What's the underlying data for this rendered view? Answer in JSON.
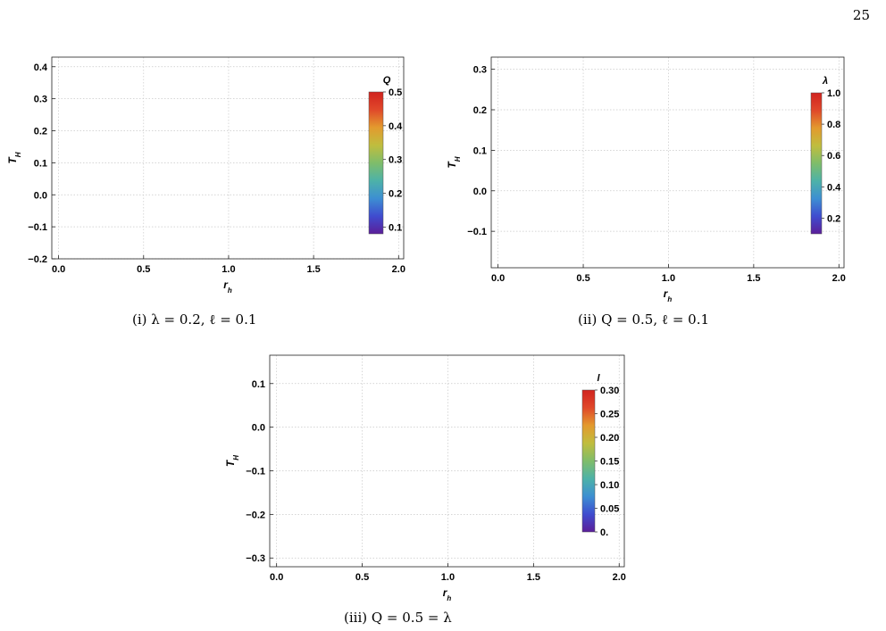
{
  "page_number": "25",
  "colorbar_colors": [
    "#5b1e99",
    "#3f4ccf",
    "#3d8fd2",
    "#4db2a8",
    "#7fbd6a",
    "#c0bd3e",
    "#e39a2e",
    "#e0482a",
    "#d1231f"
  ],
  "chart_data": [
    {
      "type": "line",
      "caption": "(i) λ = 0.2, ℓ = 0.1",
      "xlabel": "r_h",
      "ylabel": "T_H",
      "xlim": [
        -0.04,
        2.03
      ],
      "ylim": [
        -0.2,
        0.43
      ],
      "x_ticks": [
        "0.0",
        "0.5",
        "1.0",
        "1.5",
        "2.0"
      ],
      "y_ticks": [
        "-0.2",
        "-0.1",
        "0.0",
        "0.1",
        "0.2",
        "0.3",
        "0.4"
      ],
      "grid": true,
      "legend": {
        "title": "Q",
        "placement": "right",
        "range": [
          0.08,
          0.5
        ],
        "ticks": [
          "0.1",
          "0.2",
          "0.3",
          "0.4",
          "0.5"
        ]
      },
      "params": {
        "lambda": 0.2,
        "ell": 0.1
      },
      "curve_parameter": "Q",
      "parameter_range": [
        0.08,
        0.5
      ],
      "n_curves": 24,
      "clip": [
        -0.17,
        0.43
      ]
    },
    {
      "type": "line",
      "caption": "(ii) Q = 0.5, ℓ = 0.1",
      "xlabel": "r_h",
      "ylabel": "T_H",
      "xlim": [
        -0.04,
        2.03
      ],
      "ylim": [
        -0.19,
        0.33
      ],
      "x_ticks": [
        "0.0",
        "0.5",
        "1.0",
        "1.5",
        "2.0"
      ],
      "y_ticks": [
        "-0.1",
        "0.0",
        "0.1",
        "0.2",
        "0.3"
      ],
      "grid": true,
      "legend": {
        "title": "λ",
        "placement": "right",
        "range": [
          0.1,
          1.0
        ],
        "ticks": [
          "0.2",
          "0.4",
          "0.6",
          "0.8",
          "1.0"
        ]
      },
      "params": {
        "Q": 0.5,
        "ell": 0.1
      },
      "curve_parameter": "λ",
      "parameter_range": [
        0.1,
        1.0
      ],
      "n_curves": 16,
      "clip": [
        -0.17,
        0.33
      ]
    },
    {
      "type": "line",
      "caption": "(iii) Q = 0.5 = λ",
      "xlabel": "r_h",
      "ylabel": "T_H",
      "xlim": [
        -0.04,
        2.03
      ],
      "ylim": [
        -0.32,
        0.165
      ],
      "x_ticks": [
        "0.0",
        "0.5",
        "1.0",
        "1.5",
        "2.0"
      ],
      "y_ticks": [
        "-0.3",
        "-0.2",
        "-0.1",
        "0.0",
        "0.1"
      ],
      "grid": true,
      "legend": {
        "title": "l",
        "placement": "right",
        "range": [
          0.0,
          0.3
        ],
        "ticks": [
          "0.",
          "0.05",
          "0.10",
          "0.15",
          "0.20",
          "0.25",
          "0.30"
        ]
      },
      "params": {
        "Q": 0.5,
        "lambda": 0.5
      },
      "curve_parameter": "ℓ",
      "parameter_range": [
        0.0,
        0.3
      ],
      "n_curves": 20,
      "clip": [
        -0.3,
        0.165
      ]
    }
  ]
}
